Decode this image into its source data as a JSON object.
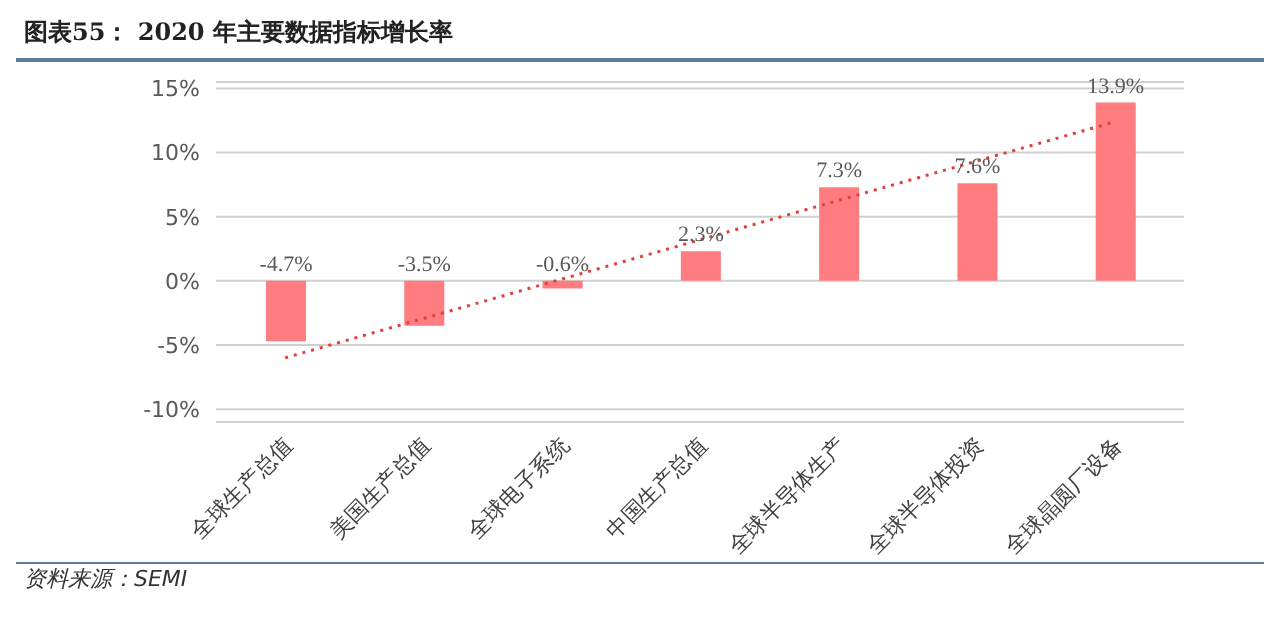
{
  "chart_data": {
    "type": "bar",
    "title": "图表55：  2020 年主要数据指标增长率",
    "categories": [
      "全球生产总值",
      "美国生产总值",
      "全球电子系统",
      "中国生产总值",
      "全球半导体生产",
      "全球半导体投资",
      "全球晶圆厂设备"
    ],
    "series": [
      {
        "values": [
          -4.7,
          -3.5,
          -0.6,
          2.3,
          7.3,
          7.6,
          13.9
        ],
        "color": "#ff7c80"
      },
      {
        "type": "line",
        "x": [
          "全球生产总值",
          "全球晶圆厂设备"
        ],
        "values": [
          -6.0,
          12.4
        ],
        "color": "#e0403c",
        "line_style": "dotted",
        "marker": "none"
      }
    ],
    "value_labels": [
      "-4.7%",
      "-3.5%",
      "-0.6%",
      "2.3%",
      "7.3%",
      "7.6%",
      "13.9%"
    ],
    "ylim": [
      -11,
      15.5
    ],
    "yticks": [
      {
        "value": -10,
        "label": "-10%"
      },
      {
        "value": -5,
        "label": "-5%"
      },
      {
        "value": 0,
        "label": "0%"
      },
      {
        "value": 5,
        "label": "5%"
      },
      {
        "value": 10,
        "label": "10%"
      },
      {
        "value": 15,
        "label": "15%"
      }
    ],
    "grid": "y",
    "legend": false,
    "annotations": [
      "资料来源：SEMI"
    ]
  }
}
